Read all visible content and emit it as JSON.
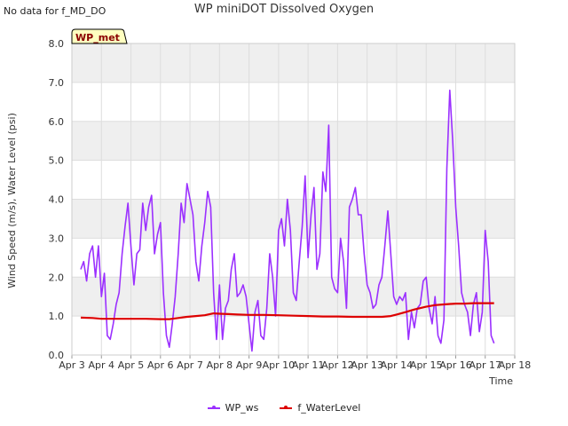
{
  "header": {
    "no_data_note": "No data for f_MD_DO",
    "title": "WP miniDOT Dissolved Oxygen"
  },
  "badge": {
    "label": "WP_met"
  },
  "colors": {
    "ws": "#9b30ff",
    "water": "#dd0000",
    "band": "#efefef",
    "grid": "#dddddd"
  },
  "chart_data": {
    "type": "line",
    "title": "WP miniDOT Dissolved Oxygen",
    "xlabel": "Time",
    "ylabel": "Wind Speed (m/s), Water Level (psi)",
    "xlim": [
      3,
      18
    ],
    "ylim": [
      0,
      8
    ],
    "x_ticks": [
      "Apr 3",
      "Apr 4",
      "Apr 5",
      "Apr 6",
      "Apr 7",
      "Apr 8",
      "Apr 9",
      "Apr 10",
      "Apr 11",
      "Apr 12",
      "Apr 13",
      "Apr 14",
      "Apr 15",
      "Apr 16",
      "Apr 17",
      "Apr 18"
    ],
    "y_ticks": [
      "0.0",
      "1.0",
      "2.0",
      "3.0",
      "4.0",
      "5.0",
      "6.0",
      "7.0",
      "8.0"
    ],
    "legend": "bottom-center",
    "series": [
      {
        "name": "WP_ws",
        "x": [
          3.3,
          3.4,
          3.5,
          3.6,
          3.7,
          3.8,
          3.9,
          4.0,
          4.1,
          4.2,
          4.3,
          4.4,
          4.5,
          4.6,
          4.7,
          4.8,
          4.9,
          5.0,
          5.1,
          5.2,
          5.3,
          5.4,
          5.5,
          5.6,
          5.7,
          5.8,
          5.9,
          6.0,
          6.1,
          6.2,
          6.3,
          6.4,
          6.5,
          6.6,
          6.7,
          6.8,
          6.9,
          7.0,
          7.1,
          7.2,
          7.3,
          7.4,
          7.5,
          7.6,
          7.7,
          7.8,
          7.9,
          8.0,
          8.1,
          8.2,
          8.3,
          8.4,
          8.5,
          8.6,
          8.7,
          8.8,
          8.9,
          9.0,
          9.1,
          9.2,
          9.3,
          9.4,
          9.5,
          9.6,
          9.7,
          9.8,
          9.9,
          10.0,
          10.1,
          10.2,
          10.3,
          10.4,
          10.5,
          10.6,
          10.7,
          10.8,
          10.9,
          11.0,
          11.1,
          11.2,
          11.3,
          11.4,
          11.5,
          11.6,
          11.7,
          11.8,
          11.9,
          12.0,
          12.1,
          12.2,
          12.3,
          12.4,
          12.5,
          12.6,
          12.7,
          12.8,
          12.9,
          13.0,
          13.1,
          13.2,
          13.3,
          13.4,
          13.5,
          13.6,
          13.7,
          13.8,
          13.9,
          14.0,
          14.1,
          14.2,
          14.3,
          14.4,
          14.5,
          14.6,
          14.7,
          14.8,
          14.9,
          15.0,
          15.1,
          15.2,
          15.3,
          15.4,
          15.5,
          15.6,
          15.7,
          15.8,
          15.9,
          16.0,
          16.1,
          16.2,
          16.3,
          16.4,
          16.5,
          16.6,
          16.7,
          16.8,
          16.9,
          17.0,
          17.1,
          17.2,
          17.3
        ],
        "values": [
          2.2,
          2.4,
          1.9,
          2.6,
          2.8,
          2.0,
          2.8,
          1.5,
          2.1,
          0.5,
          0.4,
          0.8,
          1.3,
          1.6,
          2.6,
          3.3,
          3.9,
          2.8,
          1.8,
          2.6,
          2.7,
          3.9,
          3.2,
          3.8,
          4.1,
          2.6,
          3.1,
          3.4,
          1.6,
          0.5,
          0.2,
          0.8,
          1.5,
          2.6,
          3.9,
          3.4,
          4.4,
          4.0,
          3.6,
          2.4,
          1.9,
          2.8,
          3.4,
          4.2,
          3.8,
          1.6,
          0.4,
          1.8,
          0.4,
          1.2,
          1.4,
          2.2,
          2.6,
          1.5,
          1.6,
          1.8,
          1.5,
          0.8,
          0.1,
          1.1,
          1.4,
          0.5,
          0.4,
          1.2,
          2.6,
          2.0,
          1.0,
          3.2,
          3.5,
          2.8,
          4.0,
          3.2,
          1.6,
          1.4,
          2.4,
          3.3,
          4.6,
          2.5,
          3.6,
          4.3,
          2.2,
          2.6,
          4.7,
          4.2,
          5.9,
          2.0,
          1.7,
          1.6,
          3.0,
          2.4,
          1.2,
          3.8,
          4.0,
          4.3,
          3.6,
          3.6,
          2.6,
          1.8,
          1.6,
          1.2,
          1.3,
          1.8,
          2.0,
          2.8,
          3.7,
          2.6,
          1.5,
          1.3,
          1.5,
          1.4,
          1.6,
          0.4,
          1.1,
          0.7,
          1.2,
          1.3,
          1.9,
          2.0,
          1.2,
          0.8,
          1.5,
          0.5,
          0.3,
          0.9,
          4.8,
          6.8,
          5.5,
          3.8,
          2.8,
          1.6,
          1.3,
          1.1,
          0.5,
          1.3,
          1.6,
          0.6,
          1.1,
          3.2,
          2.4,
          0.5,
          0.3
        ]
      },
      {
        "name": "f_WaterLevel",
        "x": [
          3.3,
          3.7,
          4.0,
          4.5,
          5.0,
          5.5,
          6.0,
          6.3,
          6.6,
          6.9,
          7.2,
          7.5,
          7.8,
          8.0,
          8.3,
          8.6,
          9.0,
          9.5,
          10.0,
          10.5,
          11.0,
          11.5,
          12.0,
          12.5,
          13.0,
          13.5,
          13.8,
          14.0,
          14.3,
          14.6,
          15.0,
          15.3,
          15.6,
          16.0,
          16.3,
          16.6,
          17.0,
          17.3
        ],
        "values": [
          0.96,
          0.95,
          0.93,
          0.93,
          0.93,
          0.93,
          0.92,
          0.92,
          0.95,
          0.98,
          1.0,
          1.02,
          1.07,
          1.06,
          1.05,
          1.04,
          1.03,
          1.03,
          1.02,
          1.01,
          1.0,
          0.99,
          0.99,
          0.98,
          0.98,
          0.98,
          1.0,
          1.04,
          1.1,
          1.17,
          1.24,
          1.28,
          1.3,
          1.32,
          1.32,
          1.33,
          1.33,
          1.33
        ]
      }
    ]
  }
}
